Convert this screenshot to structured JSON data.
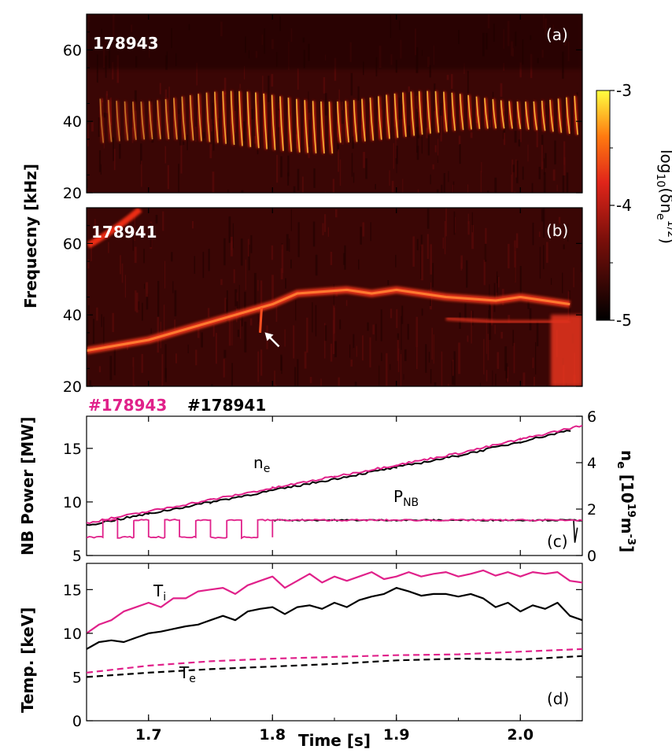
{
  "chart_data": [
    {
      "panel": "a",
      "type": "heatmap",
      "panel_label": "(a)",
      "shot_label": "178943",
      "ylim": [
        20,
        70
      ],
      "xlim": [
        1.65,
        2.05
      ],
      "yticks": [
        20,
        40,
        60
      ],
      "description_mode_kind": "chirping modes",
      "chirp_period_s": 0.0066,
      "chirp_freq_top_khz": 47,
      "chirp_freq_bottom_khz": 33
    },
    {
      "panel": "b",
      "type": "heatmap",
      "panel_label": "(b)",
      "shot_label": "178941",
      "ylim": [
        20,
        70
      ],
      "xlim": [
        1.65,
        2.05
      ],
      "yticks": [
        20,
        40,
        60
      ],
      "mode_track": {
        "x": [
          1.65,
          1.7,
          1.75,
          1.79,
          1.8,
          1.82,
          1.86,
          1.88,
          1.9,
          1.94,
          1.98,
          2.0,
          2.02,
          2.04
        ],
        "y": [
          30,
          33,
          38,
          42,
          43,
          46,
          47,
          46,
          47,
          45,
          44,
          45,
          44,
          43
        ]
      },
      "lower_branch": {
        "x": [
          1.94,
          1.98,
          2.0,
          2.02,
          2.04
        ],
        "y": [
          39,
          38,
          38,
          38,
          38
        ]
      },
      "arrow_time_s": 1.79,
      "arrow_freq_khz": 36
    },
    {
      "panel": "c",
      "type": "line",
      "panel_label": "(c)",
      "ylabel_left": "NB Power [MW]",
      "ylabel_right": "n",
      "ylabel_right_sub": "e",
      "ylabel_right_unit": "[10",
      "ylabel_right_exp": "19",
      "ylabel_right_unit2": "m",
      "ylabel_right_exp2": "-3",
      "ylabel_right_unit3": "]",
      "ylim_left": [
        5,
        18
      ],
      "ylim_right": [
        0,
        6
      ],
      "yticks_left": [
        5,
        10,
        15
      ],
      "yticks_right": [
        0,
        2,
        4,
        6
      ],
      "legend": [
        "#178943",
        "#178941"
      ],
      "annotation_ne": "n",
      "annotation_ne_sub": "e",
      "annotation_pnb": "P",
      "annotation_pnb_sub": "NB",
      "series": [
        {
          "name": "#178943",
          "quantity": "n_e",
          "axis": "right",
          "x": [
            1.65,
            1.7,
            1.75,
            1.8,
            1.85,
            1.9,
            1.95,
            2.0,
            2.05
          ],
          "y": [
            1.4,
            1.9,
            2.4,
            2.9,
            3.4,
            3.9,
            4.4,
            5.0,
            5.6
          ]
        },
        {
          "name": "#178941",
          "quantity": "n_e",
          "axis": "right",
          "x": [
            1.65,
            1.7,
            1.75,
            1.8,
            1.85,
            1.9,
            1.95,
            2.0,
            2.04
          ],
          "y": [
            1.3,
            1.8,
            2.3,
            2.8,
            3.3,
            3.8,
            4.3,
            4.9,
            5.4
          ]
        },
        {
          "name": "#178943",
          "quantity": "P_NB",
          "axis": "left",
          "modulated_until": 1.8,
          "mod_period": 0.025,
          "mod_high": 8.3,
          "mod_low": 6.7,
          "after_value": 8.3
        },
        {
          "name": "#178941",
          "quantity": "P_NB",
          "axis": "left",
          "x": [
            1.8,
            2.05
          ],
          "y": [
            8.3,
            8.3
          ]
        }
      ]
    },
    {
      "panel": "d",
      "type": "line",
      "panel_label": "(d)",
      "ylabel": "Temp. [keV]",
      "xlabel": "Time [s]",
      "ylim": [
        0,
        18
      ],
      "yticks": [
        0,
        5,
        10,
        15
      ],
      "xticks": [
        "1.7",
        "1.8",
        "1.9",
        "2.0"
      ],
      "xtick_values": [
        1.7,
        1.8,
        1.9,
        2.0
      ],
      "xlim": [
        1.65,
        2.05
      ],
      "annotation_ti": "T",
      "annotation_ti_sub": "i",
      "annotation_te": "T",
      "annotation_te_sub": "e",
      "series": [
        {
          "name": "#178943",
          "quantity": "T_i",
          "style": "solid",
          "x": [
            1.65,
            1.66,
            1.67,
            1.68,
            1.69,
            1.7,
            1.71,
            1.72,
            1.73,
            1.74,
            1.75,
            1.76,
            1.77,
            1.78,
            1.79,
            1.8,
            1.81,
            1.82,
            1.83,
            1.84,
            1.85,
            1.86,
            1.87,
            1.88,
            1.89,
            1.9,
            1.91,
            1.92,
            1.93,
            1.94,
            1.95,
            1.96,
            1.97,
            1.98,
            1.99,
            2.0,
            2.01,
            2.02,
            2.03,
            2.04,
            2.05
          ],
          "y": [
            10.0,
            11.0,
            11.5,
            12.5,
            13.0,
            13.5,
            13.0,
            14.0,
            14.0,
            14.8,
            15.0,
            15.2,
            14.5,
            15.5,
            16.0,
            16.5,
            15.2,
            16.0,
            16.8,
            15.8,
            16.5,
            16.0,
            16.5,
            17.0,
            16.2,
            16.5,
            17.0,
            16.5,
            16.8,
            17.0,
            16.5,
            16.8,
            17.2,
            16.6,
            17.0,
            16.5,
            17.0,
            16.8,
            17.0,
            16.0,
            15.8
          ]
        },
        {
          "name": "#178941",
          "quantity": "T_i",
          "style": "solid",
          "x": [
            1.65,
            1.66,
            1.67,
            1.68,
            1.69,
            1.7,
            1.71,
            1.72,
            1.73,
            1.74,
            1.75,
            1.76,
            1.77,
            1.78,
            1.79,
            1.8,
            1.81,
            1.82,
            1.83,
            1.84,
            1.85,
            1.86,
            1.87,
            1.88,
            1.89,
            1.9,
            1.91,
            1.92,
            1.93,
            1.94,
            1.95,
            1.96,
            1.97,
            1.98,
            1.99,
            2.0,
            2.01,
            2.02,
            2.03,
            2.04,
            2.05
          ],
          "y": [
            8.2,
            9.0,
            9.2,
            9.0,
            9.5,
            10.0,
            10.2,
            10.5,
            10.8,
            11.0,
            11.5,
            12.0,
            11.5,
            12.5,
            12.8,
            13.0,
            12.2,
            13.0,
            13.2,
            12.8,
            13.5,
            13.0,
            13.8,
            14.2,
            14.5,
            15.2,
            14.8,
            14.3,
            14.5,
            14.5,
            14.2,
            14.5,
            14.0,
            13.0,
            13.5,
            12.5,
            13.2,
            12.8,
            13.5,
            12.0,
            11.5
          ]
        },
        {
          "name": "#178943",
          "quantity": "T_e",
          "style": "dashed",
          "x": [
            1.65,
            1.7,
            1.75,
            1.8,
            1.85,
            1.9,
            1.95,
            2.0,
            2.05
          ],
          "y": [
            5.5,
            6.3,
            6.8,
            7.1,
            7.3,
            7.5,
            7.6,
            7.9,
            8.2
          ]
        },
        {
          "name": "#178941",
          "quantity": "T_e",
          "style": "dashed",
          "x": [
            1.65,
            1.7,
            1.75,
            1.8,
            1.85,
            1.9,
            1.95,
            2.0,
            2.05
          ],
          "y": [
            5.0,
            5.5,
            5.9,
            6.2,
            6.5,
            6.9,
            7.1,
            7.0,
            7.4
          ]
        }
      ]
    }
  ],
  "shared": {
    "ylabel_ab": "Frequecny [kHz]",
    "colorbar_label": "log",
    "colorbar_label_sub": "10",
    "colorbar_label_rest": "(δn",
    "colorbar_label_sub2": "e",
    "colorbar_label_sup": "1/2",
    "colorbar_label_close": ")",
    "colorbar_ticks": [
      "-3",
      "-4",
      "-5"
    ],
    "colorbar_range": [
      -5,
      -3
    ],
    "colors": {
      "shot_178943": "#e0218a",
      "shot_178941": "#000000"
    }
  }
}
